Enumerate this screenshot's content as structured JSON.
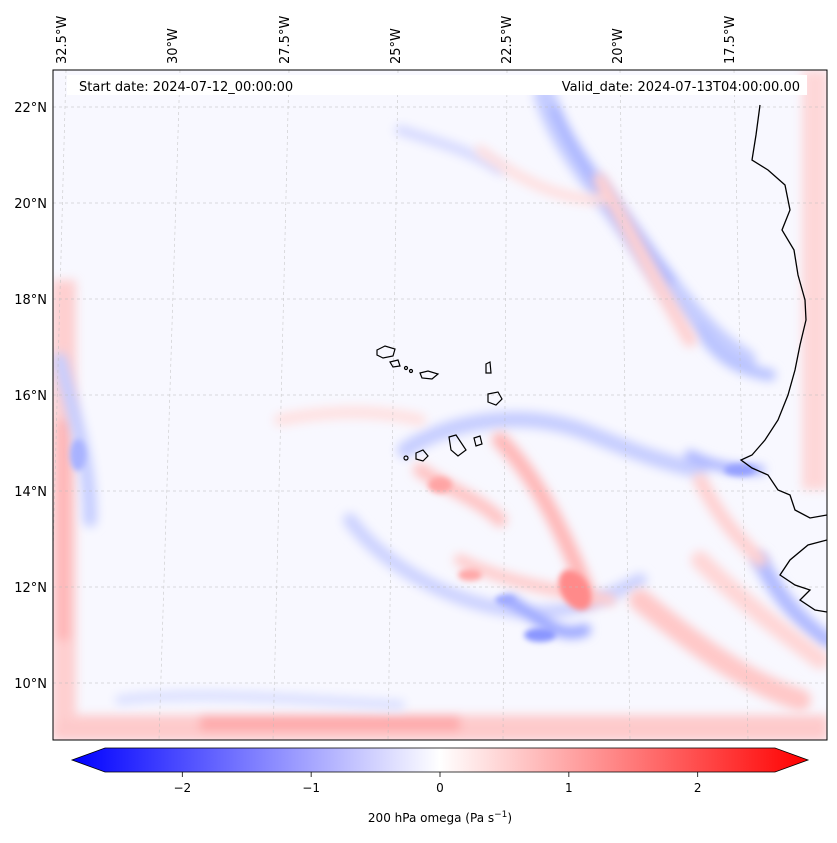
{
  "header": {
    "start_label": "Start date: 2024-07-12_00:00:00",
    "valid_label": "Valid_date: 2024-07-13T04:00:00.00"
  },
  "axes": {
    "lon_labels": [
      "32.5°W",
      "30°W",
      "27.5°W",
      "25°W",
      "22.5°W",
      "20°W",
      "17.5°W"
    ],
    "lat_labels": [
      "22°N",
      "20°N",
      "18°N",
      "16°N",
      "14°N",
      "12°N",
      "10°N"
    ]
  },
  "colorbar": {
    "ticks": [
      "−2",
      "−1",
      "0",
      "1",
      "2"
    ],
    "label": "200 hPa omega (Pa s",
    "label_sup": "−1",
    "label_end": ")",
    "min": -2.6,
    "max": 2.6,
    "colors": {
      "negative": "#0000ff",
      "zero": "#ffffff",
      "positive": "#ff0000"
    }
  }
}
